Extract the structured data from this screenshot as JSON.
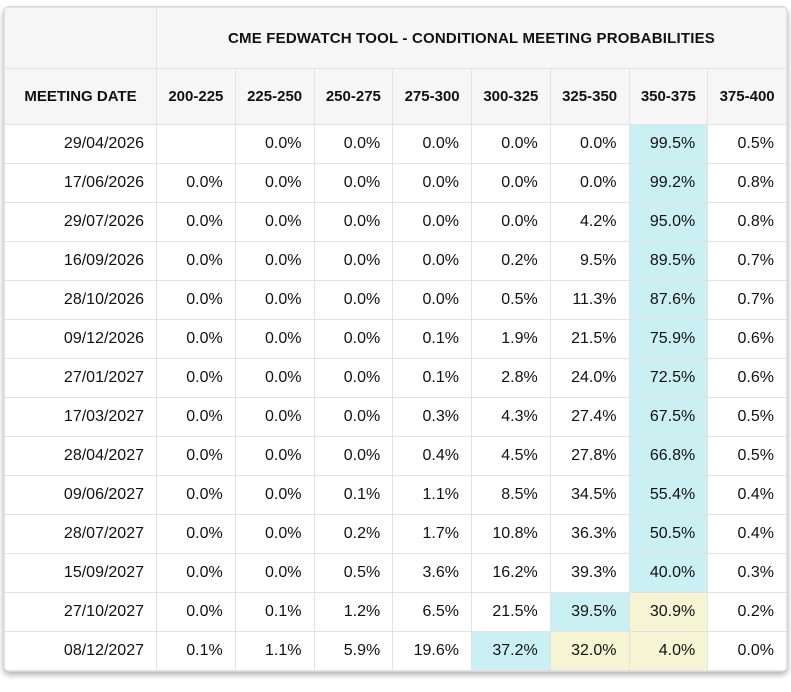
{
  "title": "CME FEDWATCH TOOL - CONDITIONAL MEETING PROBABILITIES",
  "colors": {
    "cyan": "#caf0f3",
    "yellow": "#f5f5d3",
    "header_bg": "#f6f6f6",
    "border": "#e2e2e2"
  },
  "table": {
    "date_header": "MEETING DATE",
    "range_headers": [
      "200-225",
      "225-250",
      "250-275",
      "275-300",
      "300-325",
      "325-350",
      "350-375",
      "375-400"
    ],
    "rows": [
      {
        "date": "29/04/2026",
        "values": [
          "",
          "0.0%",
          "0.0%",
          "0.0%",
          "0.0%",
          "0.0%",
          "99.5%",
          "0.5%"
        ],
        "highlights": [
          "",
          "",
          "",
          "",
          "",
          "",
          "cyan",
          ""
        ]
      },
      {
        "date": "17/06/2026",
        "values": [
          "0.0%",
          "0.0%",
          "0.0%",
          "0.0%",
          "0.0%",
          "0.0%",
          "99.2%",
          "0.8%"
        ],
        "highlights": [
          "",
          "",
          "",
          "",
          "",
          "",
          "cyan",
          ""
        ]
      },
      {
        "date": "29/07/2026",
        "values": [
          "0.0%",
          "0.0%",
          "0.0%",
          "0.0%",
          "0.0%",
          "4.2%",
          "95.0%",
          "0.8%"
        ],
        "highlights": [
          "",
          "",
          "",
          "",
          "",
          "",
          "cyan",
          ""
        ]
      },
      {
        "date": "16/09/2026",
        "values": [
          "0.0%",
          "0.0%",
          "0.0%",
          "0.0%",
          "0.2%",
          "9.5%",
          "89.5%",
          "0.7%"
        ],
        "highlights": [
          "",
          "",
          "",
          "",
          "",
          "",
          "cyan",
          ""
        ]
      },
      {
        "date": "28/10/2026",
        "values": [
          "0.0%",
          "0.0%",
          "0.0%",
          "0.0%",
          "0.5%",
          "11.3%",
          "87.6%",
          "0.7%"
        ],
        "highlights": [
          "",
          "",
          "",
          "",
          "",
          "",
          "cyan",
          ""
        ]
      },
      {
        "date": "09/12/2026",
        "values": [
          "0.0%",
          "0.0%",
          "0.0%",
          "0.1%",
          "1.9%",
          "21.5%",
          "75.9%",
          "0.6%"
        ],
        "highlights": [
          "",
          "",
          "",
          "",
          "",
          "",
          "cyan",
          ""
        ]
      },
      {
        "date": "27/01/2027",
        "values": [
          "0.0%",
          "0.0%",
          "0.0%",
          "0.1%",
          "2.8%",
          "24.0%",
          "72.5%",
          "0.6%"
        ],
        "highlights": [
          "",
          "",
          "",
          "",
          "",
          "",
          "cyan",
          ""
        ]
      },
      {
        "date": "17/03/2027",
        "values": [
          "0.0%",
          "0.0%",
          "0.0%",
          "0.3%",
          "4.3%",
          "27.4%",
          "67.5%",
          "0.5%"
        ],
        "highlights": [
          "",
          "",
          "",
          "",
          "",
          "",
          "cyan",
          ""
        ]
      },
      {
        "date": "28/04/2027",
        "values": [
          "0.0%",
          "0.0%",
          "0.0%",
          "0.4%",
          "4.5%",
          "27.8%",
          "66.8%",
          "0.5%"
        ],
        "highlights": [
          "",
          "",
          "",
          "",
          "",
          "",
          "cyan",
          ""
        ]
      },
      {
        "date": "09/06/2027",
        "values": [
          "0.0%",
          "0.0%",
          "0.1%",
          "1.1%",
          "8.5%",
          "34.5%",
          "55.4%",
          "0.4%"
        ],
        "highlights": [
          "",
          "",
          "",
          "",
          "",
          "",
          "cyan",
          ""
        ]
      },
      {
        "date": "28/07/2027",
        "values": [
          "0.0%",
          "0.0%",
          "0.2%",
          "1.7%",
          "10.8%",
          "36.3%",
          "50.5%",
          "0.4%"
        ],
        "highlights": [
          "",
          "",
          "",
          "",
          "",
          "",
          "cyan",
          ""
        ]
      },
      {
        "date": "15/09/2027",
        "values": [
          "0.0%",
          "0.0%",
          "0.5%",
          "3.6%",
          "16.2%",
          "39.3%",
          "40.0%",
          "0.3%"
        ],
        "highlights": [
          "",
          "",
          "",
          "",
          "",
          "",
          "cyan",
          ""
        ]
      },
      {
        "date": "27/10/2027",
        "values": [
          "0.0%",
          "0.1%",
          "1.2%",
          "6.5%",
          "21.5%",
          "39.5%",
          "30.9%",
          "0.2%"
        ],
        "highlights": [
          "",
          "",
          "",
          "",
          "",
          "cyan",
          "yellow",
          ""
        ]
      },
      {
        "date": "08/12/2027",
        "values": [
          "0.1%",
          "1.1%",
          "5.9%",
          "19.6%",
          "37.2%",
          "32.0%",
          "4.0%",
          "0.0%"
        ],
        "highlights": [
          "",
          "",
          "",
          "",
          "cyan",
          "yellow",
          "yellow",
          ""
        ]
      }
    ]
  }
}
